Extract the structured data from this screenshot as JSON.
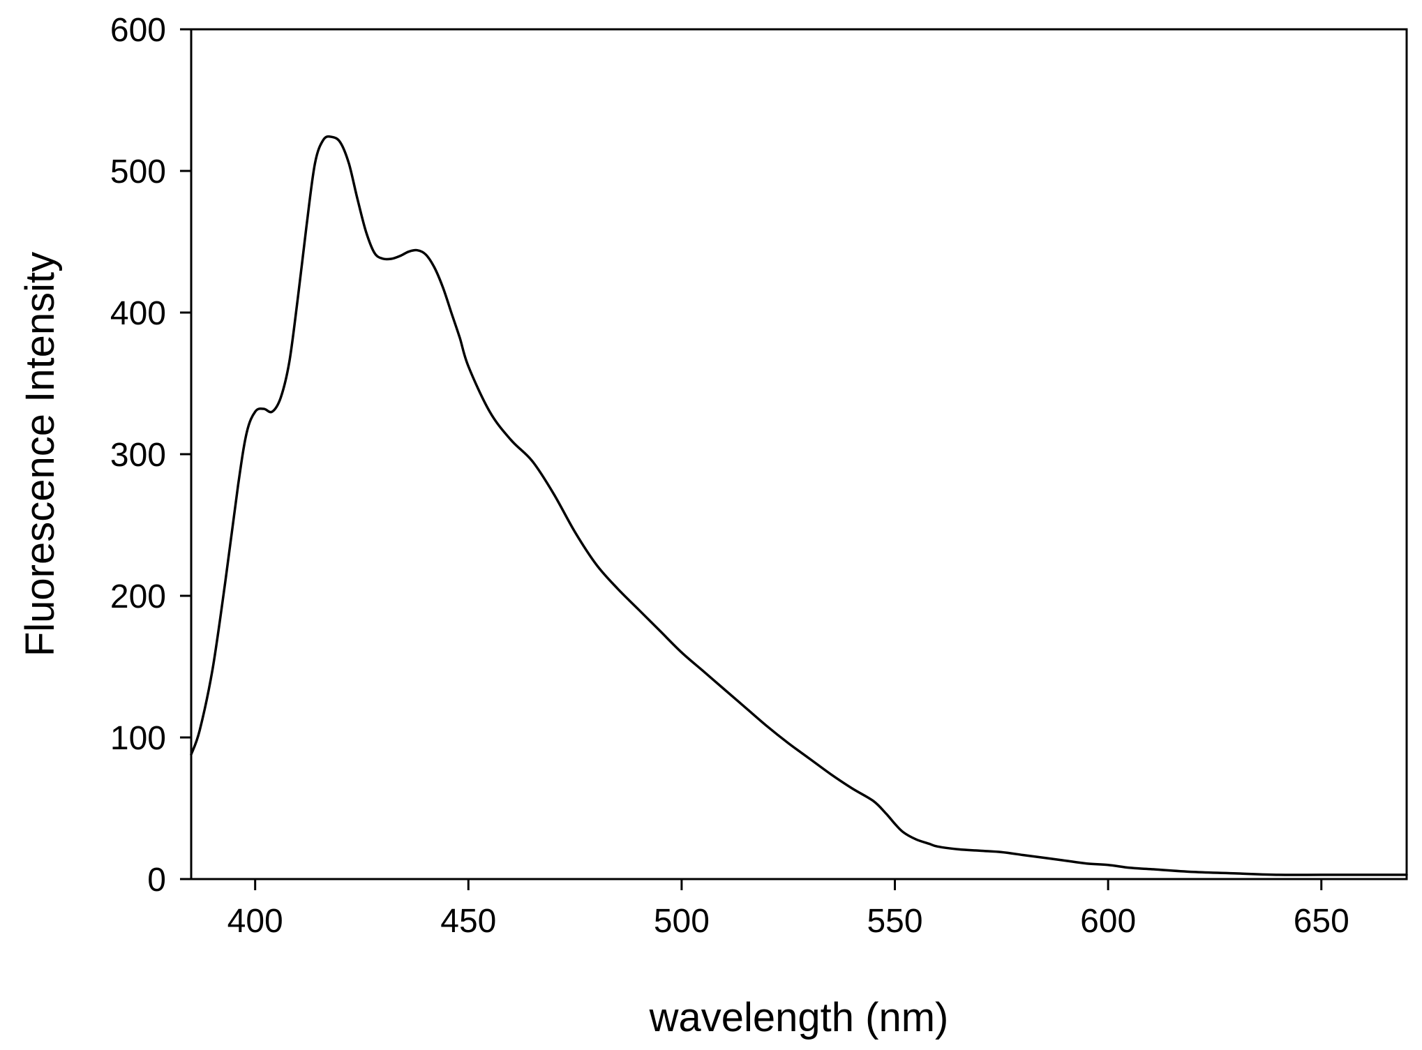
{
  "chart_data": {
    "type": "line",
    "title": "",
    "xlabel": "wavelength (nm)",
    "ylabel": "Fluorescence Intensity",
    "xlim": [
      385,
      670
    ],
    "ylim": [
      0,
      600
    ],
    "x_ticks": [
      400,
      450,
      500,
      550,
      600,
      650
    ],
    "y_ticks": [
      0,
      100,
      200,
      300,
      400,
      500,
      600
    ],
    "grid": false,
    "legend": "none",
    "line_color": "#000000",
    "series": [
      {
        "x": [
          385,
          387,
          390,
          393,
          396,
          398,
          400,
          402,
          404,
          406,
          408,
          410,
          412,
          414,
          416,
          418,
          420,
          422,
          424,
          426,
          428,
          430,
          432,
          434,
          436,
          438,
          440,
          442,
          444,
          446,
          448,
          450,
          455,
          460,
          465,
          470,
          475,
          480,
          485,
          490,
          495,
          500,
          505,
          510,
          515,
          520,
          525,
          530,
          535,
          540,
          545,
          548,
          550,
          552,
          555,
          558,
          560,
          565,
          570,
          575,
          580,
          585,
          590,
          595,
          600,
          605,
          610,
          620,
          630,
          640,
          650,
          660,
          670
        ],
        "y": [
          88,
          105,
          148,
          210,
          278,
          315,
          330,
          332,
          330,
          340,
          365,
          410,
          460,
          505,
          522,
          524,
          520,
          505,
          480,
          457,
          442,
          438,
          438,
          440,
          443,
          444,
          441,
          432,
          418,
          400,
          382,
          362,
          330,
          310,
          295,
          272,
          245,
          222,
          205,
          190,
          175,
          160,
          147,
          134,
          121,
          108,
          96,
          85,
          74,
          64,
          55,
          46,
          39,
          33,
          28,
          25,
          23,
          21,
          20,
          19,
          17,
          15,
          13,
          11,
          10,
          8,
          7,
          5,
          4,
          3,
          3,
          3,
          3
        ]
      }
    ]
  }
}
